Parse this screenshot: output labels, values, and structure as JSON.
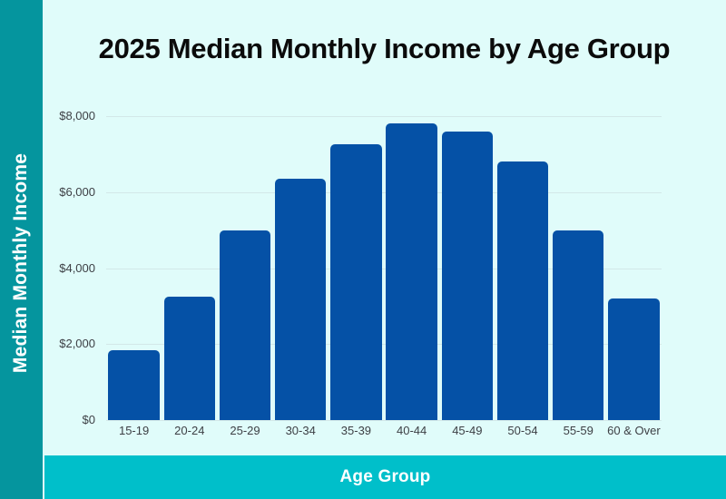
{
  "title": "2025 Median Monthly Income by Age Group",
  "y_axis_title": "Median Monthly Income",
  "x_axis_title": "Age Group",
  "colors": {
    "left_strip": "#05959e",
    "bottom_band": "#00bfca",
    "background": "#e0fcfa",
    "bar": "#0551a6",
    "gridline": "#d3e8e8",
    "tick_text": "#3d4045",
    "title_text": "#0b0b0b",
    "axis_title_text": "#ffffff"
  },
  "chart_data": {
    "type": "bar",
    "title": "2025 Median Monthly Income by Age Group",
    "xlabel": "Age Group",
    "ylabel": "Median Monthly Income",
    "categories": [
      "15-19",
      "20-24",
      "25-29",
      "30-34",
      "35-39",
      "40-44",
      "45-49",
      "50-54",
      "55-59",
      "60 & Over"
    ],
    "values": [
      1850,
      3250,
      5000,
      6350,
      7250,
      7800,
      7600,
      6800,
      5000,
      3200
    ],
    "ylim": [
      0,
      8000
    ],
    "ytick_interval": 2000,
    "yticks_bottom_to_top": [
      "$0",
      "$2,000",
      "$4,000",
      "$6,000",
      "$8,000"
    ],
    "grid": true,
    "legend": "none",
    "bar_color": "#0551a6"
  }
}
